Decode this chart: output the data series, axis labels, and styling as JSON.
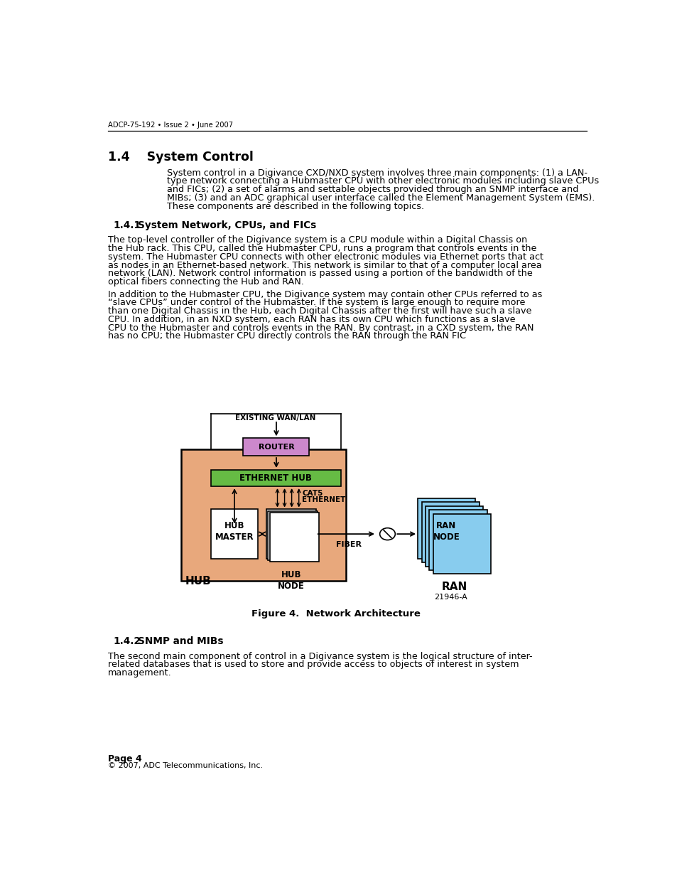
{
  "header_text": "ADCP-75-192 • Issue 2 • June 2007",
  "section_title": "1.4    System Control",
  "subsection1_num": "1.4.1",
  "subsection1_txt": "   System Network, CPUs, and FICs",
  "subsection2_num": "1.4.2",
  "subsection2_txt": "   SNMP and MIBs",
  "footer_page": "Page 4",
  "footer_copy": "© 2007, ADC Telecommunications, Inc.",
  "figure_caption": "Figure 4.  Network Architecture",
  "figure_id": "21946-A",
  "bg_color": "#ffffff",
  "text_color": "#000000",
  "para1": "System control in a Digivance CXD/NXD system involves three main components: (1) a LAN-type network connecting a Hubmaster CPU with other electronic modules including slave CPUs and FICs; (2) a set of alarms and settable objects provided through an SNMP interface and MIBs; (3) and an ADC graphical user interface called the Element Management System (EMS). These components are described in the following topics.",
  "para2a": "The top-level controller of the Digivance system is a CPU module within a Digital Chassis on the Hub rack. This CPU, called the Hubmaster CPU, runs a program that controls events in the system. The Hubmaster CPU connects with other electronic modules via Ethernet ports that act as nodes in an Ethernet-based network. This network is similar to that of a computer local area network (LAN). Network control information is passed using a portion of the bandwidth of the optical fibers connecting the Hub and RAN.",
  "para2b": "In addition to the Hubmaster CPU, the Digivance system may contain other CPUs referred to as “slave CPUs” under control of the Hubmaster. If the system is large enough to require more than one Digital Chassis in the Hub, each Digital Chassis after the first will have such a slave CPU. In addition, in an NXD system, each RAN has its own CPU which functions as a slave CPU to the Hubmaster and controls events in the RAN. By contrast, in a CXD system, the RAN has no CPU; the Hubmaster CPU directly controls the RAN through the RAN FIC",
  "para3": "The second main component of control in a Digivance system is the logical structure of inter-related databases that is used to store and provide access to objects of interest in system management.",
  "hub_color": "#E8A87C",
  "router_color": "#CC88CC",
  "eth_color": "#66BB44",
  "ran_color": "#88CCEE",
  "white": "#FFFFFF",
  "black": "#000000"
}
